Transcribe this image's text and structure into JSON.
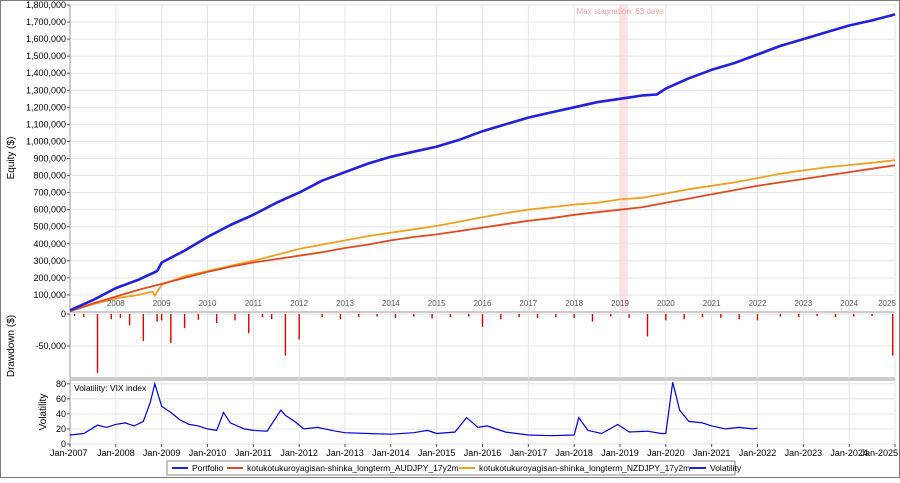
{
  "chart_data": [
    {
      "panel": "equity",
      "type": "line",
      "ylabel": "Equity ($)",
      "ylim": [
        0,
        1800000
      ],
      "y_ticks": [
        100000,
        200000,
        300000,
        400000,
        500000,
        600000,
        700000,
        800000,
        900000,
        1000000,
        1100000,
        1200000,
        1300000,
        1400000,
        1500000,
        1600000,
        1700000,
        1800000
      ],
      "y_tick_labels": [
        "100,000",
        "200,000",
        "300,000",
        "400,000",
        "500,000",
        "600,000",
        "700,000",
        "800,000",
        "900,000",
        "1,000,000",
        "1,100,000",
        "1,200,000",
        "1,300,000",
        "1,400,000",
        "1,500,000",
        "1,600,000",
        "1,700,000",
        "1,800,000"
      ],
      "year_labels": [
        "2008",
        "2009",
        "2010",
        "2011",
        "2012",
        "2013",
        "2014",
        "2015",
        "2016",
        "2017",
        "2018",
        "2019",
        "2020",
        "2021",
        "2022",
        "2023",
        "2024",
        "2025"
      ],
      "annotation": {
        "text": "Max stagnation: 63 days",
        "x_start": 2019.0,
        "x_end": 2019.17
      },
      "grid": true,
      "series": [
        {
          "name": "Portfolio",
          "color": "#2020dd",
          "x": [
            2007.0,
            2007.5,
            2008.0,
            2008.5,
            2008.9,
            2009.0,
            2009.5,
            2010.0,
            2010.5,
            2011.0,
            2011.5,
            2012.0,
            2012.5,
            2013.0,
            2013.5,
            2014.0,
            2014.5,
            2015.0,
            2015.5,
            2016.0,
            2016.5,
            2017.0,
            2017.5,
            2018.0,
            2018.5,
            2019.0,
            2019.5,
            2019.8,
            2020.0,
            2020.5,
            2021.0,
            2021.5,
            2022.0,
            2022.5,
            2023.0,
            2023.5,
            2024.0,
            2024.5,
            2025.0
          ],
          "values": [
            10000,
            70000,
            140000,
            190000,
            240000,
            290000,
            360000,
            440000,
            510000,
            570000,
            640000,
            700000,
            770000,
            820000,
            870000,
            910000,
            940000,
            970000,
            1010000,
            1060000,
            1100000,
            1140000,
            1170000,
            1200000,
            1230000,
            1250000,
            1270000,
            1275000,
            1310000,
            1370000,
            1420000,
            1460000,
            1510000,
            1560000,
            1600000,
            1640000,
            1680000,
            1710000,
            1745000
          ]
        },
        {
          "name": "kotukotukuroyagisan-shinka_longterm_AUDJPY_17y2m",
          "color": "#e04a20",
          "x": [
            2007.0,
            2007.5,
            2008.0,
            2008.5,
            2009.0,
            2009.5,
            2010.0,
            2010.5,
            2011.0,
            2011.5,
            2012.0,
            2012.5,
            2013.0,
            2013.5,
            2014.0,
            2014.5,
            2015.0,
            2015.5,
            2016.0,
            2016.5,
            2017.0,
            2017.5,
            2018.0,
            2018.5,
            2019.0,
            2019.5,
            2020.0,
            2020.5,
            2021.0,
            2021.5,
            2022.0,
            2022.5,
            2023.0,
            2023.5,
            2024.0,
            2024.5,
            2025.0
          ],
          "values": [
            5000,
            50000,
            90000,
            130000,
            165000,
            200000,
            235000,
            265000,
            290000,
            310000,
            330000,
            350000,
            375000,
            395000,
            420000,
            440000,
            455000,
            475000,
            495000,
            515000,
            535000,
            550000,
            570000,
            585000,
            600000,
            615000,
            640000,
            665000,
            690000,
            715000,
            740000,
            760000,
            780000,
            800000,
            820000,
            840000,
            860000
          ]
        },
        {
          "name": "kotukotukuroyagisan-shinka_longterm_NZDJPY_17y2m",
          "color": "#f0a020",
          "x": [
            2007.0,
            2007.5,
            2008.0,
            2008.5,
            2008.8,
            2008.85,
            2009.0,
            2009.5,
            2010.0,
            2010.5,
            2011.0,
            2011.5,
            2012.0,
            2012.5,
            2013.0,
            2013.5,
            2014.0,
            2014.5,
            2015.0,
            2015.5,
            2016.0,
            2016.5,
            2017.0,
            2017.5,
            2018.0,
            2018.5,
            2019.0,
            2019.5,
            2020.0,
            2020.5,
            2021.0,
            2021.5,
            2022.0,
            2022.5,
            2023.0,
            2023.5,
            2024.0,
            2024.5,
            2025.0
          ],
          "values": [
            5000,
            45000,
            80000,
            100000,
            120000,
            95000,
            160000,
            210000,
            240000,
            270000,
            300000,
            335000,
            370000,
            395000,
            420000,
            445000,
            465000,
            485000,
            505000,
            530000,
            555000,
            580000,
            600000,
            615000,
            630000,
            640000,
            660000,
            670000,
            695000,
            720000,
            740000,
            760000,
            785000,
            810000,
            830000,
            848000,
            862000,
            875000,
            890000
          ]
        }
      ]
    },
    {
      "panel": "drawdown",
      "type": "bar",
      "ylabel": "Drawdown ($)",
      "ylim": [
        -100000,
        0
      ],
      "y_ticks": [
        0,
        -50000
      ],
      "y_tick_labels": [
        "0",
        "-50,000"
      ],
      "color": "#dd0000",
      "x": [
        2007.1,
        2007.3,
        2007.6,
        2007.9,
        2008.1,
        2008.3,
        2008.6,
        2008.9,
        2009.0,
        2009.2,
        2009.5,
        2009.8,
        2010.2,
        2010.6,
        2010.9,
        2011.2,
        2011.4,
        2011.7,
        2012.0,
        2012.5,
        2012.9,
        2013.3,
        2013.7,
        2014.1,
        2014.5,
        2014.9,
        2015.3,
        2015.7,
        2016.0,
        2016.4,
        2016.8,
        2017.2,
        2017.6,
        2018.0,
        2018.4,
        2018.8,
        2019.2,
        2019.6,
        2020.0,
        2020.4,
        2020.8,
        2021.2,
        2021.6,
        2022.0,
        2022.5,
        2022.9,
        2023.3,
        2023.7,
        2024.1,
        2024.5,
        2024.95
      ],
      "values": [
        -3000,
        -5000,
        -92000,
        -8000,
        -6000,
        -18000,
        -42000,
        -12000,
        -10000,
        -45000,
        -22000,
        -9000,
        -14000,
        -10000,
        -30000,
        -5000,
        -8000,
        -65000,
        -40000,
        -5000,
        -8000,
        -5000,
        -4000,
        -6000,
        -4000,
        -7000,
        -5000,
        -4000,
        -20000,
        -8000,
        -5000,
        -6000,
        -5000,
        -6000,
        -12000,
        -4000,
        -6000,
        -35000,
        -10000,
        -8000,
        -5000,
        -6000,
        -8000,
        -10000,
        -4000,
        -5000,
        -3000,
        -5000,
        -4000,
        -3000,
        -65000
      ]
    },
    {
      "panel": "volatility",
      "type": "line",
      "ylabel": "Volatility",
      "series_label": "Volatility: VIX index",
      "ylim": [
        0,
        85
      ],
      "y_ticks": [
        0,
        20,
        40,
        60,
        80
      ],
      "y_tick_labels": [
        "0",
        "20",
        "40",
        "60",
        "80"
      ],
      "x_tick_labels": [
        "Jan-2007",
        "Jan-2008",
        "Jan-2009",
        "Jan-2010",
        "Jan-2011",
        "Jan-2012",
        "Jan-2013",
        "Jan-2014",
        "Jan-2015",
        "Jan-2016",
        "Jan-2017",
        "Jan-2018",
        "Jan-2019",
        "Jan-2020",
        "Jan-2021",
        "Jan-2022",
        "Jan-2023",
        "Jan-2024",
        "Jan-2025"
      ],
      "color": "#0000dd",
      "x": [
        2007.0,
        2007.3,
        2007.6,
        2007.8,
        2008.0,
        2008.2,
        2008.4,
        2008.6,
        2008.75,
        2008.85,
        2009.0,
        2009.2,
        2009.4,
        2009.6,
        2009.8,
        2010.0,
        2010.2,
        2010.35,
        2010.5,
        2010.8,
        2011.0,
        2011.3,
        2011.6,
        2011.7,
        2011.9,
        2012.1,
        2012.4,
        2012.8,
        2013.0,
        2013.5,
        2014.0,
        2014.5,
        2014.8,
        2015.0,
        2015.4,
        2015.65,
        2015.9,
        2016.1,
        2016.5,
        2017.0,
        2017.5,
        2018.0,
        2018.1,
        2018.3,
        2018.6,
        2018.95,
        2019.2,
        2019.6,
        2019.9,
        2020.0,
        2020.15,
        2020.2,
        2020.3,
        2020.5,
        2020.8,
        2021.0,
        2021.3,
        2021.6,
        2021.9,
        2022.0
      ],
      "values": [
        12,
        14,
        25,
        22,
        26,
        28,
        24,
        30,
        55,
        80,
        50,
        42,
        32,
        26,
        24,
        20,
        18,
        42,
        28,
        20,
        18,
        17,
        45,
        38,
        30,
        20,
        22,
        17,
        15,
        14,
        13,
        15,
        18,
        14,
        16,
        35,
        22,
        24,
        16,
        12,
        11,
        12,
        35,
        18,
        14,
        26,
        16,
        17,
        14,
        14,
        82,
        70,
        45,
        30,
        28,
        24,
        20,
        22,
        20,
        21
      ]
    }
  ],
  "legend": [
    {
      "name": "Portfolio",
      "color": "#2020dd"
    },
    {
      "name": "kotukotukuroyagisan-shinka_longterm_AUDJPY_17y2m",
      "color": "#e04a20"
    },
    {
      "name": "kotukotukuroyagisan-shinka_longterm_NZDJPY_17y2m",
      "color": "#f0a020"
    },
    {
      "name": "Volatility",
      "color": "#2020dd"
    }
  ]
}
